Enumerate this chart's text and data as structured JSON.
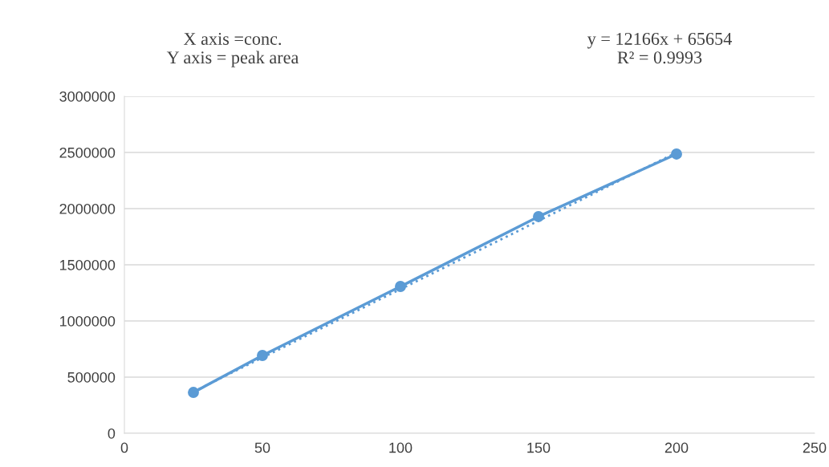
{
  "chart_data": {
    "type": "line",
    "x": [
      25,
      50,
      100,
      150,
      200
    ],
    "series": [
      {
        "color": "#5b9bd5",
        "values": [
          364000,
          693000,
          1307000,
          1929000,
          2486000
        ],
        "marker": "circle",
        "line_style": "solid"
      },
      {
        "color": "#5b9bd5",
        "x": [
          25,
          200
        ],
        "values": [
          370000,
          2500000
        ],
        "marker": "none",
        "line_style": "dotted"
      }
    ],
    "xlim": [
      0,
      250
    ],
    "xticks": [
      0,
      50,
      100,
      150,
      200,
      250
    ],
    "ylim": [
      0,
      3000000
    ],
    "yticks": [
      0,
      500000,
      1000000,
      1500000,
      2000000,
      2500000,
      3000000
    ],
    "grid": "y",
    "legend": false,
    "annotations": [
      "X axis =conc.\nY axis = peak area",
      "y = 12166x + 65654\nR² = 0.9993"
    ]
  }
}
